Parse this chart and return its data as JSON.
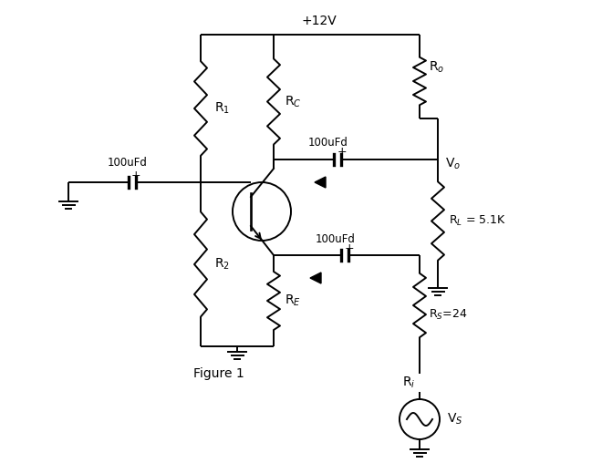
{
  "bg_color": "#ffffff",
  "line_color": "#000000",
  "line_width": 1.4,
  "figsize": [
    6.6,
    5.08
  ],
  "dpi": 100,
  "labels": {
    "vcc": "+12V",
    "R1": "R$_1$",
    "R2": "R$_2$",
    "RC": "R$_C$",
    "RE": "R$_E$",
    "Ro": "R$_o$",
    "RL": "R$_L$ = 5.1K",
    "RS": "R$_S$=24",
    "Ri": "R$_i$",
    "Vo": "V$_o$",
    "Vs": "V$_S$",
    "cap1": "100uFd",
    "cap2": "100uFd",
    "cap3": "100uFd",
    "fig": "Figure 1"
  }
}
